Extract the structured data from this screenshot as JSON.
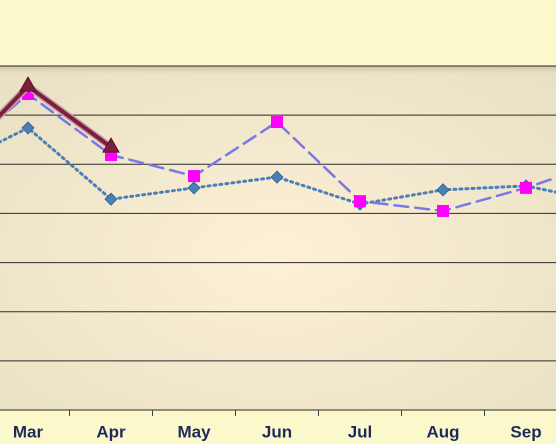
{
  "chart_data": {
    "type": "line",
    "categories": [
      null,
      "Mar",
      "Apr",
      "May",
      "Jun",
      "Jul",
      "Aug",
      "Sep",
      null
    ],
    "series": [
      {
        "color": "#4a7fb8",
        "values": [
          4.9,
          5.74,
          4.29,
          4.52,
          4.74,
          4.19,
          4.48,
          4.56,
          4.21
        ]
      },
      {
        "color": "#7a78e8",
        "values": [
          4.99,
          6.43,
          5.19,
          4.76,
          5.86,
          4.25,
          4.05,
          4.52,
          5.09
        ]
      },
      {
        "color": "#7a1f3d",
        "values": [
          4.84,
          6.59,
          5.35,
          null,
          null,
          null,
          null,
          null,
          null
        ]
      }
    ],
    "ylim": [
      0,
      7
    ],
    "yticks": [
      0,
      1,
      2,
      3,
      4,
      5,
      6,
      7
    ],
    "grid": true
  }
}
